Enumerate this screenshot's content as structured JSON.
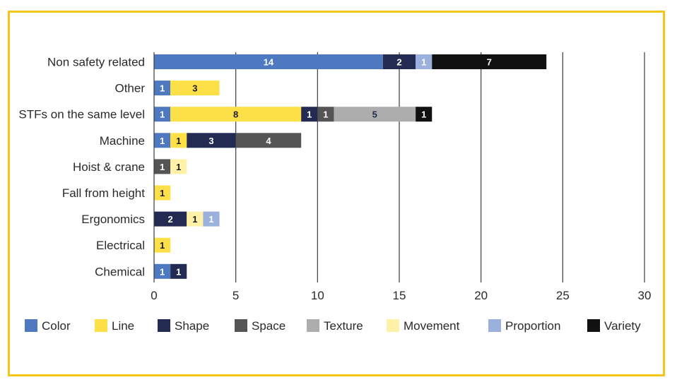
{
  "chart_data": {
    "type": "bar",
    "orientation": "horizontal",
    "stacked": true,
    "categories": [
      "Non safety related",
      "Other",
      "STFs on the same level",
      "Machine",
      "Hoist & crane",
      "Fall from height",
      "Ergonomics",
      "Electrical",
      "Chemical"
    ],
    "series": [
      {
        "name": "Color",
        "color": "#4e79c0",
        "label_color": "#ffffff",
        "values": [
          14,
          1,
          1,
          1,
          0,
          0,
          0,
          0,
          1
        ]
      },
      {
        "name": "Line",
        "color": "#fde047",
        "label_color": "#1a1a1a",
        "values": [
          0,
          3,
          8,
          1,
          0,
          1,
          0,
          1,
          0
        ]
      },
      {
        "name": "Shape",
        "color": "#242b52",
        "label_color": "#ffffff",
        "values": [
          2,
          0,
          1,
          3,
          0,
          0,
          2,
          0,
          1
        ]
      },
      {
        "name": "Space",
        "color": "#555555",
        "label_color": "#ffffff",
        "values": [
          0,
          0,
          1,
          4,
          1,
          0,
          0,
          0,
          0
        ]
      },
      {
        "name": "Texture",
        "color": "#adadad",
        "label_color": "#242b52",
        "values": [
          0,
          0,
          5,
          0,
          0,
          0,
          0,
          0,
          0
        ]
      },
      {
        "name": "Movement",
        "color": "#fff2a8",
        "label_color": "#1a1a1a",
        "values": [
          0,
          0,
          0,
          0,
          1,
          0,
          1,
          0,
          0
        ]
      },
      {
        "name": "Proportion",
        "color": "#9bb0dd",
        "label_color": "#ffffff",
        "values": [
          1,
          0,
          0,
          0,
          0,
          0,
          1,
          0,
          0
        ]
      },
      {
        "name": "Variety",
        "color": "#111111",
        "label_color": "#ffffff",
        "values": [
          7,
          0,
          1,
          0,
          0,
          0,
          0,
          0,
          0
        ]
      }
    ],
    "xlim": [
      0,
      30
    ],
    "xticks": [
      0,
      5,
      10,
      15,
      20,
      25,
      30
    ],
    "grid": true,
    "legend_position": "bottom",
    "title": "",
    "xlabel": "",
    "ylabel": ""
  },
  "colors": {
    "frame_border": "#f5c518",
    "gridline": "#3a3a4a"
  }
}
